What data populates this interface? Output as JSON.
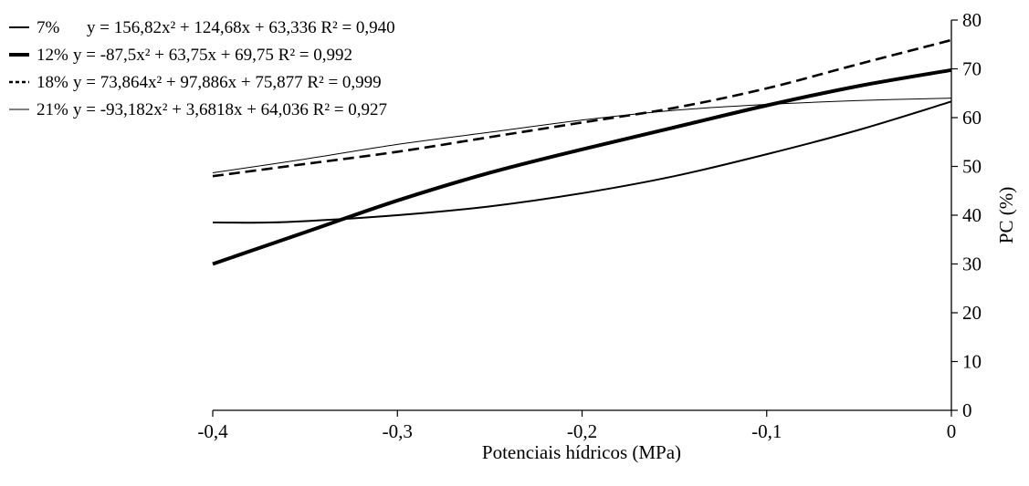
{
  "chart_data": {
    "type": "line",
    "title": "",
    "xlabel": "Potenciais hídricos (MPa)",
    "ylabel": "PC (%)",
    "xlim": [
      -0.4,
      0
    ],
    "ylim": [
      0,
      80
    ],
    "x_ticks": [
      "-0,4",
      "-0,3",
      "-0,2",
      "-0,1",
      "0"
    ],
    "y_ticks": [
      "0",
      "10",
      "20",
      "30",
      "40",
      "50",
      "60",
      "70",
      "80"
    ],
    "y_axis_position": "right",
    "grid": false,
    "legend_position": "top-left",
    "series": [
      {
        "name": "7%",
        "equation": "y = 156,82x² + 124,68x + 63,336 R² = 0,940",
        "style": "solid-medium",
        "points": [
          [
            -0.4,
            38.5
          ],
          [
            -0.36,
            38.6
          ],
          [
            -0.3,
            40.0
          ],
          [
            -0.25,
            41.8
          ],
          [
            -0.2,
            44.5
          ],
          [
            -0.15,
            48.0
          ],
          [
            -0.1,
            52.5
          ],
          [
            -0.05,
            57.5
          ],
          [
            0,
            63.3
          ]
        ]
      },
      {
        "name": "12%",
        "equation": "y = -87,5x² + 63,75x + 69,75 R² = 0,992",
        "style": "solid-thick",
        "points": [
          [
            -0.4,
            30.0
          ],
          [
            -0.35,
            36.5
          ],
          [
            -0.3,
            43.0
          ],
          [
            -0.25,
            48.7
          ],
          [
            -0.2,
            53.5
          ],
          [
            -0.15,
            58.0
          ],
          [
            -0.1,
            62.5
          ],
          [
            -0.05,
            66.5
          ],
          [
            0,
            69.75
          ]
        ]
      },
      {
        "name": "18%",
        "equation": "y = 73,864x² + 97,886x + 75,877 R² = 0,999",
        "style": "dashed",
        "points": [
          [
            -0.4,
            48.0
          ],
          [
            -0.35,
            50.5
          ],
          [
            -0.3,
            53.0
          ],
          [
            -0.25,
            56.0
          ],
          [
            -0.2,
            59.0
          ],
          [
            -0.15,
            62.0
          ],
          [
            -0.1,
            66.0
          ],
          [
            -0.05,
            71.0
          ],
          [
            0,
            75.9
          ]
        ]
      },
      {
        "name": "21%",
        "equation": "y = -93,182x² + 3,6818x + 64,036 R² = 0,927",
        "style": "solid-thin",
        "points": [
          [
            -0.4,
            48.7
          ],
          [
            -0.35,
            51.5
          ],
          [
            -0.3,
            54.5
          ],
          [
            -0.25,
            57.0
          ],
          [
            -0.2,
            59.5
          ],
          [
            -0.15,
            61.5
          ],
          [
            -0.1,
            62.7
          ],
          [
            -0.05,
            63.5
          ],
          [
            0,
            64.0
          ]
        ]
      }
    ]
  }
}
